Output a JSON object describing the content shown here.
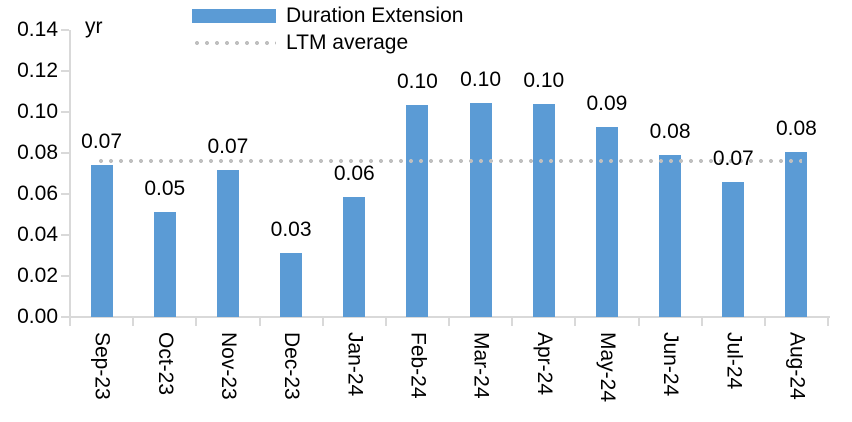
{
  "chart_data": {
    "type": "bar",
    "title": "",
    "unit": "yr",
    "xlabel": "",
    "ylabel": "yr",
    "categories": [
      "Sep-23",
      "Oct-23",
      "Nov-23",
      "Dec-23",
      "Jan-24",
      "Feb-24",
      "Mar-24",
      "Apr-24",
      "May-24",
      "Jun-24",
      "Jul-24",
      "Aug-24"
    ],
    "series": [
      {
        "name": "Duration Extension",
        "type": "bar",
        "color": "#5B9BD5",
        "values": [
          0.074,
          0.051,
          0.0715,
          0.031,
          0.0585,
          0.1035,
          0.1045,
          0.104,
          0.0925,
          0.079,
          0.066,
          0.0805
        ],
        "data_labels": [
          "0.07",
          "0.05",
          "0.07",
          "0.03",
          "0.06",
          "0.10",
          "0.10",
          "0.10",
          "0.09",
          "0.08",
          "0.07",
          "0.08"
        ]
      },
      {
        "name": "LTM average",
        "type": "line",
        "line_style": "dotted",
        "color": "#BFBFBF",
        "value": 0.076
      }
    ],
    "ylim": [
      0,
      0.14
    ],
    "ytick_step": 0.02,
    "ytick_labels": [
      "0.00",
      "0.02",
      "0.04",
      "0.06",
      "0.08",
      "0.10",
      "0.12",
      "0.14"
    ],
    "grid": false,
    "legend_position": "top-center",
    "axis_color": "#D9D9D9",
    "text_color": "#000000",
    "background_color": "#FFFFFF"
  }
}
